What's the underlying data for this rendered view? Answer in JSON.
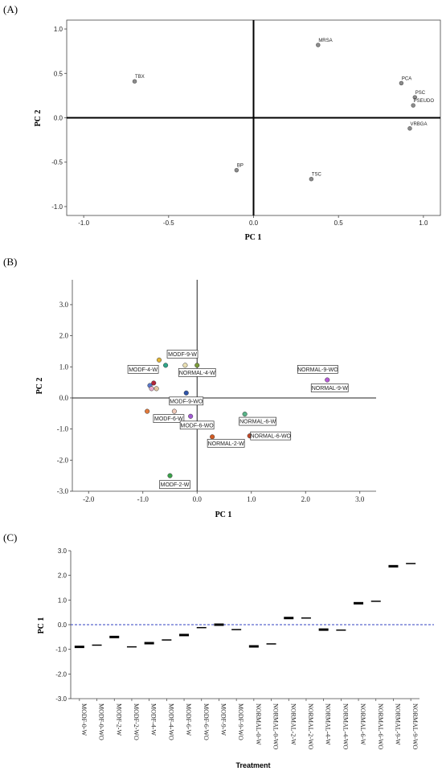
{
  "chart_data": [
    {
      "panel": "(A)",
      "type": "scatter",
      "xlabel": "PC 1",
      "ylabel": "PC 2",
      "xlim": [
        -1.1,
        1.1
      ],
      "ylim": [
        -1.1,
        1.1
      ],
      "xticks": [
        "-1.0",
        "-0.5",
        "0.0",
        "0.5",
        "1.0"
      ],
      "yticks": [
        "1.0",
        "0.5",
        "0.0",
        "-0.5",
        "-1.0"
      ],
      "point_color": "#8c8c8c",
      "points": [
        {
          "label": "MRSA",
          "x": 0.38,
          "y": 0.82
        },
        {
          "label": "TBX",
          "x": -0.7,
          "y": 0.41
        },
        {
          "label": "PCA",
          "x": 0.87,
          "y": 0.39
        },
        {
          "label": "PSC",
          "x": 0.95,
          "y": 0.23
        },
        {
          "label": "PSEUDO",
          "x": 0.94,
          "y": 0.14
        },
        {
          "label": "VRBGA",
          "x": 0.92,
          "y": -0.12
        },
        {
          "label": "BP",
          "x": -0.1,
          "y": -0.59
        },
        {
          "label": "TSC",
          "x": 0.34,
          "y": -0.69
        }
      ]
    },
    {
      "panel": "(B)",
      "type": "scatter",
      "xlabel": "PC 1",
      "ylabel": "PC 2",
      "xlim": [
        -2.3,
        3.3
      ],
      "ylim": [
        -3.0,
        3.8
      ],
      "xticks": [
        "-2.0",
        "-1.0",
        "0.0",
        "1.0",
        "2.0",
        "3.0"
      ],
      "yticks": [
        "3.0",
        "2.0",
        "1.0",
        "0.0",
        "-1.0",
        "-2.0",
        "-3.0"
      ],
      "points": [
        {
          "x": -0.7,
          "y": 1.22,
          "color": "#e0b437",
          "label": ""
        },
        {
          "x": -0.58,
          "y": 1.05,
          "color": "#2fa58a",
          "label": "MODF-4-W"
        },
        {
          "x": -0.22,
          "y": 1.05,
          "color": "#e9dfb2",
          "label": ""
        },
        {
          "x": 0.0,
          "y": 1.05,
          "color": "#7b9a3a",
          "label": "NORMAL-4-W"
        },
        {
          "x": -0.8,
          "y": 0.48,
          "color": "#b2243a",
          "label": ""
        },
        {
          "x": -0.87,
          "y": 0.4,
          "color": "#5876c9",
          "label": ""
        },
        {
          "x": -0.84,
          "y": 0.3,
          "color": "#e8a7c9",
          "label": ""
        },
        {
          "x": -0.75,
          "y": 0.3,
          "color": "#e5c7a0",
          "label": ""
        },
        {
          "x": -0.2,
          "y": 0.16,
          "color": "#2e53a8",
          "label": "MODF-9-WO"
        },
        {
          "x": -0.92,
          "y": -0.43,
          "color": "#e27a3c",
          "label": ""
        },
        {
          "x": -0.42,
          "y": -0.43,
          "color": "#f0c9b8",
          "label": "MODF-6-W"
        },
        {
          "x": -0.12,
          "y": -0.59,
          "color": "#a25ad4",
          "label": "MODF-6-WO"
        },
        {
          "x": 0.88,
          "y": -0.52,
          "color": "#58b488",
          "label": "NORMAL-6-W"
        },
        {
          "x": 0.28,
          "y": -1.25,
          "color": "#d25a22",
          "label": "NORMAL-2-W"
        },
        {
          "x": 0.97,
          "y": -1.22,
          "color": "#c44a2a",
          "label": "NORMAL-6-WO"
        },
        {
          "x": 2.55,
          "y": 0.92,
          "color": "#e8b33a",
          "label": "NORMAL-9-WO"
        },
        {
          "x": 2.4,
          "y": 0.58,
          "color": "#b65ad6",
          "label": "NORMAL-9-W"
        },
        {
          "x": -0.5,
          "y": -2.5,
          "color": "#3aa14a",
          "label": "MODF-2-W"
        }
      ],
      "extra_labels": [
        {
          "label": "MODF-9-W",
          "x": -0.27,
          "y": 1.41
        }
      ]
    },
    {
      "panel": "(C)",
      "type": "scatter",
      "xlabel": "Treatment",
      "ylabel": "PC 1",
      "ylim": [
        -3.0,
        3.0
      ],
      "yticks": [
        "3.0",
        "2.0",
        "1.0",
        "0.0",
        "-1.0",
        "-2.0",
        "-3.0"
      ],
      "reference_line": 0.0,
      "reference_color": "#3040c0",
      "categories": [
        "MODF-0-W",
        "MODF-0-WO",
        "MODF-2-W",
        "MODF-2-WO",
        "MODF-4-W",
        "MODF-4-WO",
        "MODF-6-W",
        "MODF-6-WO",
        "MODF-9-W",
        "MODF-9-WO",
        "NORMAL-0-W",
        "NORMAL-0-WO",
        "NORMAL-2-W",
        "NORMAL-2-WO",
        "NORMAL-4-W",
        "NORMAL-4-WO",
        "NORMAL-6-W",
        "NORMAL-6-WO",
        "NORMAL-9-W",
        "NORMAL-9-WO"
      ],
      "values": [
        -0.9,
        -0.83,
        -0.5,
        -0.9,
        -0.75,
        -0.62,
        -0.42,
        -0.12,
        0.0,
        -0.2,
        -0.88,
        -0.78,
        0.27,
        0.27,
        -0.2,
        -0.22,
        0.87,
        0.95,
        2.37,
        2.48
      ],
      "thick": [
        true,
        false,
        true,
        false,
        true,
        false,
        true,
        false,
        true,
        false,
        true,
        false,
        true,
        false,
        true,
        false,
        true,
        false,
        true,
        false
      ]
    }
  ]
}
